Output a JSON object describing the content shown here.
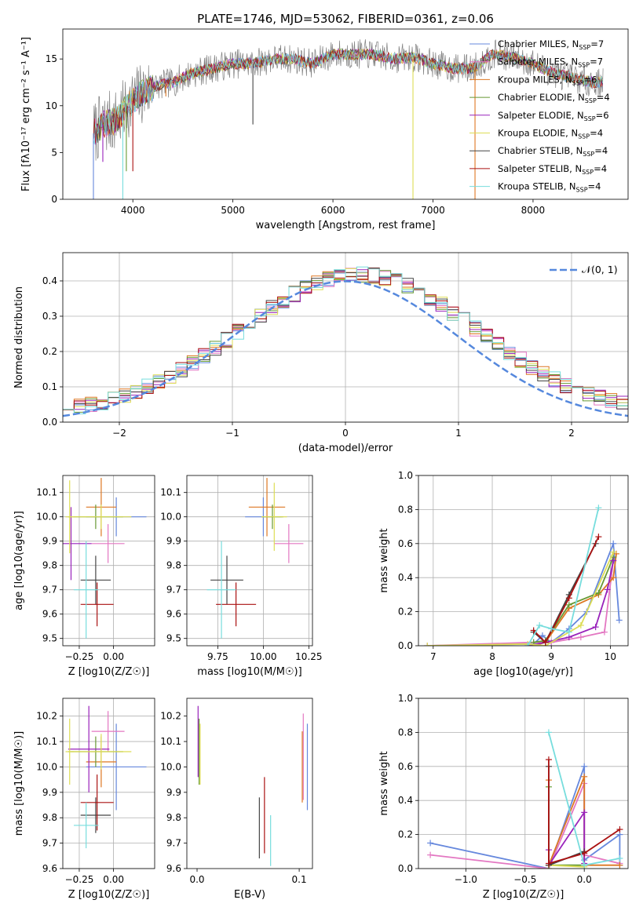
{
  "figure_title": "PLATE=1746, MJD=53062, FIBERID=0361, z=0.06",
  "chart_data": [
    {
      "id": "spectrum",
      "type": "line",
      "title": "PLATE=1746, MJD=53062, FIBERID=0361, z=0.06",
      "xlabel": "wavelength [Angstrom, rest frame]",
      "ylabel": "Flux [fλ10⁻¹⁷ erg cm⁻² s⁻¹ A⁻¹]",
      "xlim": [
        3300,
        8950
      ],
      "ylim": [
        0,
        18.2
      ],
      "xticks": [
        4000,
        5000,
        6000,
        7000,
        8000
      ],
      "yticks": [
        0,
        5,
        10,
        15
      ],
      "grid": false,
      "legend_position": "right",
      "legend": [
        {
          "label": "Chabrier MILES, N_SSP=7",
          "color": "#6688dd"
        },
        {
          "label": "Salpeter MILES, N_SSP=7",
          "color": "#e377c2"
        },
        {
          "label": "Kroupa MILES, N_SSP=6",
          "color": "#dd7722"
        },
        {
          "label": "Chabrier ELODIE, N_SSP=4",
          "color": "#669933"
        },
        {
          "label": "Salpeter ELODIE, N_SSP=6",
          "color": "#9922bb"
        },
        {
          "label": "Kroupa ELODIE, N_SSP=4",
          "color": "#dddd55"
        },
        {
          "label": "Chabrier STELIB, N_SSP=4",
          "color": "#444444"
        },
        {
          "label": "Salpeter STELIB, N_SSP=4",
          "color": "#aa1111"
        },
        {
          "label": "Kroupa STELIB, N_SSP=4",
          "color": "#77dddd"
        }
      ],
      "continuum": {
        "x": [
          3600,
          3700,
          3850,
          3950,
          4050,
          4200,
          4400,
          4600,
          4800,
          5000,
          5200,
          5400,
          5600,
          5800,
          6000,
          6200,
          6400,
          6600,
          6800,
          7000,
          7200,
          7400,
          7600,
          7800,
          8000,
          8200,
          8400,
          8600,
          8800
        ],
        "y": [
          7.0,
          8.0,
          8.5,
          10.0,
          11.0,
          12.0,
          12.5,
          13.5,
          14.0,
          14.5,
          14.5,
          15.0,
          15.0,
          14.5,
          15.5,
          15.5,
          15.5,
          15.0,
          15.2,
          14.5,
          14.0,
          14.0,
          15.5,
          15.2,
          14.5,
          13.5,
          13.0,
          12.5,
          12.5
        ]
      },
      "dips": {
        "x": [
          3606,
          3700,
          3900,
          3935,
          4000,
          4330,
          5200,
          6800,
          7420
        ],
        "y": [
          0,
          4,
          0,
          3,
          3,
          11,
          8,
          0,
          0
        ]
      }
    },
    {
      "id": "residuals",
      "type": "histogram",
      "xlabel": "(data-model)/error",
      "ylabel": "Normed distribution",
      "xlim": [
        -2.5,
        2.5
      ],
      "ylim": [
        0,
        0.48
      ],
      "xticks": [
        -2,
        -1,
        0,
        1,
        2
      ],
      "yticks": [
        0.0,
        0.1,
        0.2,
        0.3,
        0.4
      ],
      "grid": true,
      "legend_position": "top-right",
      "legend": [
        {
          "label": "𝒩(0, 1)",
          "color": "#5588dd"
        }
      ],
      "bin_width": 0.1
    },
    {
      "id": "age_vs_Z",
      "type": "errorbar",
      "xlabel": "Z [log10(Z/Z☉)]",
      "ylabel": "age  [log10(age/yr)]",
      "xlim": [
        -0.37,
        0.3
      ],
      "ylim": [
        9.47,
        10.17
      ],
      "xticks": [
        -0.25,
        0.0
      ],
      "yticks": [
        9.5,
        9.6,
        9.7,
        9.8,
        9.9,
        10.0,
        10.1
      ],
      "grid": true,
      "points": [
        {
          "x": 0.02,
          "y": 10.0,
          "xerr": 0.22,
          "yerr": 0.08,
          "color": "#6688dd"
        },
        {
          "x": -0.04,
          "y": 9.89,
          "xerr": 0.12,
          "yerr": 0.08,
          "color": "#e377c2"
        },
        {
          "x": -0.09,
          "y": 10.04,
          "xerr": 0.11,
          "yerr": 0.12,
          "color": "#dd7722"
        },
        {
          "x": -0.13,
          "y": 10.0,
          "xerr": 0.2,
          "yerr": 0.05,
          "color": "#669933"
        },
        {
          "x": -0.31,
          "y": 9.89,
          "xerr": 0.15,
          "yerr": 0.15,
          "color": "#9922bb"
        },
        {
          "x": -0.09,
          "y": 10.0,
          "xerr": 0.22,
          "yerr": 0.05,
          "color": "#dddd55"
        },
        {
          "x": -0.13,
          "y": 9.74,
          "xerr": 0.11,
          "yerr": 0.1,
          "color": "#444444"
        },
        {
          "x": -0.12,
          "y": 9.64,
          "xerr": 0.12,
          "yerr": 0.09,
          "color": "#aa1111"
        },
        {
          "x": -0.2,
          "y": 9.7,
          "xerr": 0.09,
          "yerr": 0.2,
          "color": "#77dddd"
        },
        {
          "x": -0.32,
          "y": 10.0,
          "xerr": 0.03,
          "yerr": 0.15,
          "color": "#dddd55"
        }
      ]
    },
    {
      "id": "age_vs_mass",
      "type": "errorbar",
      "xlabel": "mass [log10(M/M☉)]",
      "ylabel": "",
      "xlim": [
        9.58,
        10.27
      ],
      "ylim": [
        9.47,
        10.17
      ],
      "xticks": [
        9.75,
        10.0,
        10.25
      ],
      "yticks": [
        9.5,
        9.6,
        9.7,
        9.8,
        9.9,
        10.0,
        10.1
      ],
      "grid": true,
      "points": [
        {
          "x": 10.0,
          "y": 10.0,
          "xerr": 0.1,
          "yerr": 0.08,
          "color": "#6688dd"
        },
        {
          "x": 10.14,
          "y": 9.89,
          "xerr": 0.08,
          "yerr": 0.08,
          "color": "#e377c2"
        },
        {
          "x": 10.02,
          "y": 10.04,
          "xerr": 0.1,
          "yerr": 0.12,
          "color": "#dd7722"
        },
        {
          "x": 10.05,
          "y": 10.0,
          "xerr": 0.06,
          "yerr": 0.05,
          "color": "#669933"
        },
        {
          "x": 10.06,
          "y": 10.0,
          "xerr": 0.07,
          "yerr": 0.14,
          "color": "#dddd55"
        },
        {
          "x": 9.8,
          "y": 9.74,
          "xerr": 0.09,
          "yerr": 0.1,
          "color": "#444444"
        },
        {
          "x": 9.85,
          "y": 9.64,
          "xerr": 0.11,
          "yerr": 0.09,
          "color": "#aa1111"
        },
        {
          "x": 9.77,
          "y": 9.7,
          "xerr": 0.08,
          "yerr": 0.2,
          "color": "#77dddd"
        }
      ]
    },
    {
      "id": "weight_vs_age",
      "type": "line",
      "xlabel": "age  [log10(age/yr)]",
      "ylabel": "mass weight",
      "xlim": [
        6.75,
        10.3
      ],
      "ylim": [
        0,
        1.0
      ],
      "xticks": [
        7,
        8,
        9,
        10
      ],
      "yticks": [
        0.0,
        0.2,
        0.4,
        0.6,
        0.8,
        1.0
      ],
      "grid": true,
      "series": [
        {
          "color": "#6688dd",
          "x": [
            6.9,
            8.7,
            8.85,
            9.0,
            9.3,
            9.6,
            10.05,
            10.15
          ],
          "y": [
            0.0,
            0.01,
            0.06,
            0.02,
            0.1,
            0.2,
            0.6,
            0.15
          ]
        },
        {
          "color": "#e377c2",
          "x": [
            6.9,
            8.7,
            9.0,
            9.5,
            9.9,
            10.05
          ],
          "y": [
            0.0,
            0.02,
            0.02,
            0.05,
            0.08,
            0.5
          ]
        },
        {
          "color": "#dd7722",
          "x": [
            8.7,
            8.9,
            9.3,
            9.8,
            10.05,
            10.1
          ],
          "y": [
            0.0,
            0.02,
            0.22,
            0.3,
            0.4,
            0.54
          ]
        },
        {
          "color": "#669933",
          "x": [
            8.7,
            8.9,
            9.3,
            9.8,
            10.05
          ],
          "y": [
            0.02,
            0.03,
            0.24,
            0.31,
            0.52
          ]
        },
        {
          "color": "#9922bb",
          "x": [
            8.6,
            8.9,
            9.3,
            9.75,
            9.95,
            10.05
          ],
          "y": [
            0.0,
            0.02,
            0.05,
            0.11,
            0.33,
            0.5
          ]
        },
        {
          "color": "#dddd55",
          "x": [
            6.9,
            8.6,
            8.9,
            9.5,
            10.05
          ],
          "y": [
            0.0,
            0.01,
            0.0,
            0.12,
            0.55
          ]
        },
        {
          "color": "#444444",
          "x": [
            8.7,
            8.9,
            9.3,
            9.75
          ],
          "y": [
            0.08,
            0.02,
            0.3,
            0.6
          ]
        },
        {
          "color": "#aa1111",
          "x": [
            8.7,
            8.9,
            9.3,
            9.8
          ],
          "y": [
            0.09,
            0.02,
            0.28,
            0.64
          ]
        },
        {
          "color": "#77dddd",
          "x": [
            8.6,
            8.8,
            9.0,
            9.3,
            9.8
          ],
          "y": [
            0.0,
            0.12,
            0.1,
            0.08,
            0.81
          ]
        }
      ]
    },
    {
      "id": "mass_vs_Z",
      "type": "errorbar",
      "xlabel": "Z [log10(Z/Z☉)]",
      "ylabel": "mass [log10(M/M☉)]",
      "xlim": [
        -0.37,
        0.3
      ],
      "ylim": [
        9.6,
        10.27
      ],
      "xticks": [
        -0.25,
        0.0
      ],
      "yticks": [
        9.6,
        9.7,
        9.8,
        9.9,
        10.0,
        10.1,
        10.2
      ],
      "grid": true,
      "points": [
        {
          "x": 0.02,
          "y": 10.0,
          "xerr": 0.22,
          "yerr": 0.17,
          "color": "#6688dd"
        },
        {
          "x": -0.04,
          "y": 10.14,
          "xerr": 0.12,
          "yerr": 0.08,
          "color": "#e377c2"
        },
        {
          "x": -0.09,
          "y": 10.02,
          "xerr": 0.11,
          "yerr": 0.1,
          "color": "#dd7722"
        },
        {
          "x": -0.13,
          "y": 10.06,
          "xerr": 0.2,
          "yerr": 0.06,
          "color": "#669933"
        },
        {
          "x": -0.18,
          "y": 10.07,
          "xerr": 0.15,
          "yerr": 0.17,
          "color": "#9922bb"
        },
        {
          "x": -0.09,
          "y": 10.06,
          "xerr": 0.22,
          "yerr": 0.07,
          "color": "#dddd55"
        },
        {
          "x": -0.13,
          "y": 9.81,
          "xerr": 0.11,
          "yerr": 0.07,
          "color": "#444444"
        },
        {
          "x": -0.12,
          "y": 9.86,
          "xerr": 0.12,
          "yerr": 0.11,
          "color": "#aa1111"
        },
        {
          "x": -0.2,
          "y": 9.77,
          "xerr": 0.09,
          "yerr": 0.09,
          "color": "#77dddd"
        },
        {
          "x": -0.32,
          "y": 10.06,
          "xerr": 0.03,
          "yerr": 0.13,
          "color": "#dddd55"
        }
      ]
    },
    {
      "id": "mass_vs_EBV",
      "type": "errorbar",
      "xlabel": "E(B-V)",
      "ylabel": "",
      "xlim": [
        -0.01,
        0.113
      ],
      "ylim": [
        9.6,
        10.27
      ],
      "xticks": [
        0.0,
        0.1
      ],
      "yticks": [
        9.6,
        9.7,
        9.8,
        9.9,
        10.0,
        10.1,
        10.2
      ],
      "grid": false,
      "points": [
        {
          "x": 0.108,
          "y": 10.0,
          "xerr": 0,
          "yerr": 0.17,
          "color": "#6688dd"
        },
        {
          "x": 0.104,
          "y": 10.04,
          "xerr": 0,
          "yerr": 0.17,
          "color": "#e377c2"
        },
        {
          "x": 0.103,
          "y": 10.0,
          "xerr": 0,
          "yerr": 0.14,
          "color": "#dd7722"
        },
        {
          "x": 0.002,
          "y": 10.06,
          "xerr": 0,
          "yerr": 0.13,
          "color": "#669933"
        },
        {
          "x": 0.001,
          "y": 10.1,
          "xerr": 0,
          "yerr": 0.14,
          "color": "#9922bb"
        },
        {
          "x": 0.003,
          "y": 10.05,
          "xerr": 0,
          "yerr": 0.12,
          "color": "#dddd55"
        },
        {
          "x": 0.061,
          "y": 9.76,
          "xerr": 0,
          "yerr": 0.12,
          "color": "#444444"
        },
        {
          "x": 0.066,
          "y": 9.81,
          "xerr": 0,
          "yerr": 0.15,
          "color": "#aa1111"
        },
        {
          "x": 0.072,
          "y": 9.71,
          "xerr": 0,
          "yerr": 0.1,
          "color": "#77dddd"
        }
      ]
    },
    {
      "id": "weight_vs_Z",
      "type": "line",
      "xlabel": "Z [log10(Z/Z☉)]",
      "ylabel": "mass weight",
      "xlim": [
        -1.4,
        0.37
      ],
      "ylim": [
        0,
        1.0
      ],
      "xticks": [
        -1.0,
        -0.5,
        0.0
      ],
      "yticks": [
        0.0,
        0.2,
        0.4,
        0.6,
        0.8,
        1.0
      ],
      "grid": true,
      "series": [
        {
          "color": "#6688dd",
          "x": [
            -1.3,
            -0.3,
            0.0,
            0.0,
            0.3,
            0.3
          ],
          "y": [
            0.15,
            0.0,
            0.6,
            0.05,
            0.2,
            0.02
          ]
        },
        {
          "color": "#e377c2",
          "x": [
            -1.3,
            -0.3,
            0.0,
            0.0,
            0.3
          ],
          "y": [
            0.08,
            0.0,
            0.5,
            0.08,
            0.03
          ]
        },
        {
          "color": "#dd7722",
          "x": [
            -0.3,
            -0.3,
            0.0,
            0.0,
            0.3
          ],
          "y": [
            0.52,
            0.02,
            0.54,
            0.02,
            0.02
          ]
        },
        {
          "color": "#669933",
          "x": [
            -0.3,
            -0.3,
            0.0
          ],
          "y": [
            0.48,
            0.02,
            0.02
          ]
        },
        {
          "color": "#9922bb",
          "x": [
            -0.3,
            -0.3,
            0.0,
            0.0
          ],
          "y": [
            0.11,
            0.02,
            0.33,
            0.03
          ]
        },
        {
          "color": "#dddd55",
          "x": [
            -0.3,
            -0.3,
            0.0
          ],
          "y": [
            0.0,
            0.02,
            0.01
          ]
        },
        {
          "color": "#444444",
          "x": [
            -0.3,
            -0.3,
            0.0
          ],
          "y": [
            0.6,
            0.02,
            0.1
          ]
        },
        {
          "color": "#aa1111",
          "x": [
            -0.3,
            -0.3,
            0.0,
            0.3
          ],
          "y": [
            0.64,
            0.03,
            0.09,
            0.23
          ]
        },
        {
          "color": "#77dddd",
          "x": [
            -0.3,
            0.0,
            0.3
          ],
          "y": [
            0.8,
            0.02,
            0.06
          ]
        }
      ]
    }
  ]
}
